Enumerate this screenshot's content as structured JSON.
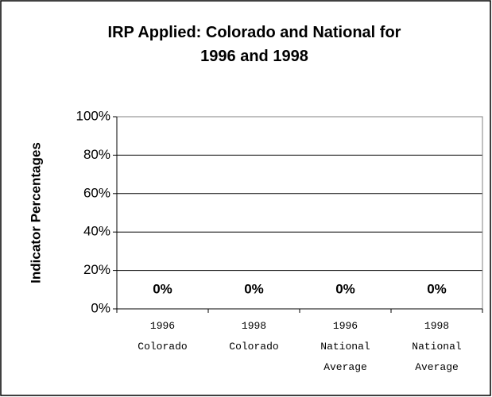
{
  "chart_data": {
    "type": "bar",
    "title": "IRP Applied: Colorado and National for 1996 and 1998",
    "y_label": "Indicator Percentages",
    "categories": [
      "1996 Colorado",
      "1998 Colorado",
      "1996 National Average",
      "1998 National Average"
    ],
    "values": [
      0,
      0,
      0,
      0
    ],
    "value_labels": [
      "0%",
      "0%",
      "0%",
      "0%"
    ],
    "color": "#9999ff",
    "ylim": [
      0,
      100
    ],
    "yticks": [
      {
        "value": 0,
        "label": "0%"
      },
      {
        "value": 20,
        "label": "20%"
      },
      {
        "value": 40,
        "label": "40%"
      },
      {
        "value": 60,
        "label": "60%"
      },
      {
        "value": 80,
        "label": "80%"
      },
      {
        "value": 100,
        "label": "100%"
      }
    ],
    "grid": true
  }
}
